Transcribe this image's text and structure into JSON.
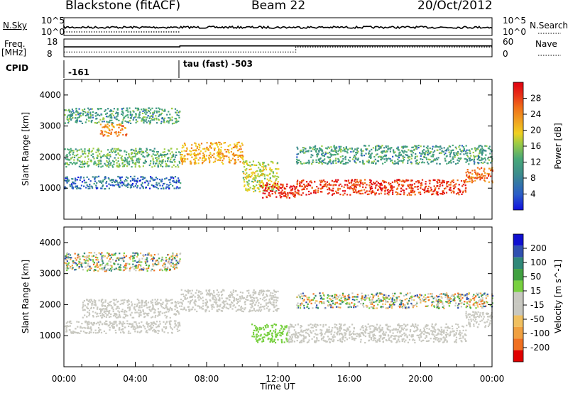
{
  "header": {
    "station": "Blackstone (fitACF)",
    "beam": "Beam 22",
    "date": "20/Oct/2012"
  },
  "strip": {
    "nsky_label": "N.Sky",
    "nsearch_label": "N.Search",
    "freq_label": "Freq.",
    "freq_unit": "[MHz]",
    "nave_label": "Nave",
    "cpid_label": "CPID",
    "nsky_ticks": [
      "10^5",
      "10^0"
    ],
    "nsearch_ticks": [
      "10^5",
      "10^0"
    ],
    "freq_ticks": [
      "18",
      "8"
    ],
    "nave_ticks": [
      "60",
      "0"
    ],
    "cpid_values": [
      {
        "label": "-161",
        "start_hour": 0
      },
      {
        "label": "tau (fast) -503",
        "start_hour": 6.5
      }
    ],
    "freq_steps": [
      {
        "start_hour": 0,
        "value": 10
      },
      {
        "start_hour": 6.5,
        "value": 11
      }
    ],
    "nave_steps": [
      {
        "start_hour": 0,
        "value": 16
      },
      {
        "start_hour": 13,
        "value": 33
      }
    ]
  },
  "chart_data": [
    {
      "type": "heatmap",
      "panel": "power",
      "ylabel": "Slant Range [km]",
      "yticks": [
        "1000",
        "2000",
        "3000",
        "4000"
      ],
      "ylim": [
        0,
        4500
      ],
      "xlim": [
        0,
        24
      ],
      "colorbar_label": "Power [dB]",
      "colorbar_ticks": [
        "4",
        "8",
        "12",
        "16",
        "20",
        "24",
        "28"
      ],
      "colorbar_range": [
        0,
        32
      ],
      "colorbar_colors": [
        "#1010e0",
        "#2a5cc8",
        "#3c8c8c",
        "#48a878",
        "#9ccc44",
        "#f0d020",
        "#f0a020",
        "#f07018",
        "#e83018",
        "#e00010"
      ],
      "echo_bands": [
        {
          "start_hour": 0.0,
          "end_hour": 6.5,
          "r0": 3100,
          "r1": 3600,
          "power": 10
        },
        {
          "start_hour": 2.0,
          "end_hour": 3.5,
          "r0": 2700,
          "r1": 3100,
          "power": 22
        },
        {
          "start_hour": 0.0,
          "end_hour": 6.5,
          "r0": 1700,
          "r1": 2300,
          "power": 12
        },
        {
          "start_hour": 0.0,
          "end_hour": 6.5,
          "r0": 1000,
          "r1": 1400,
          "power": 6
        },
        {
          "start_hour": 6.5,
          "end_hour": 10.0,
          "r0": 1800,
          "r1": 2500,
          "power": 20
        },
        {
          "start_hour": 10.0,
          "end_hour": 12.0,
          "r0": 900,
          "r1": 1900,
          "power": 16
        },
        {
          "start_hour": 11.0,
          "end_hour": 13.0,
          "r0": 700,
          "r1": 1200,
          "power": 28
        },
        {
          "start_hour": 13.0,
          "end_hour": 22.5,
          "r0": 800,
          "r1": 1300,
          "power": 27
        },
        {
          "start_hour": 22.5,
          "end_hour": 24.0,
          "r0": 1200,
          "r1": 1700,
          "power": 24
        },
        {
          "start_hour": 13.0,
          "end_hour": 24.0,
          "r0": 1800,
          "r1": 2400,
          "power": 10
        }
      ]
    },
    {
      "type": "heatmap",
      "panel": "velocity",
      "ylabel": "Slant Range [km]",
      "yticks": [
        "1000",
        "2000",
        "3000",
        "4000"
      ],
      "ylim": [
        0,
        4500
      ],
      "xlim": [
        0,
        24
      ],
      "xlabel": "Time UT",
      "xticks": [
        "00:00",
        "04:00",
        "08:00",
        "12:00",
        "16:00",
        "20:00",
        "00:00"
      ],
      "colorbar_label": "Velocity [m s^-1]",
      "colorbar_ticks": [
        "-200",
        "-100",
        "-50",
        "-15",
        "15",
        "50",
        "100",
        "200"
      ],
      "colorbar_colors": [
        "#e00000",
        "#f07020",
        "#f0a040",
        "#f0c060",
        "#c8c8c0",
        "#c8c8c0",
        "#78d040",
        "#40a040",
        "#308878",
        "#3050b0",
        "#1010d0"
      ],
      "echo_bands": [
        {
          "start_hour": 0.0,
          "end_hour": 6.5,
          "r0": 3100,
          "r1": 3700,
          "velocity": 0,
          "mixed": true
        },
        {
          "start_hour": 0.0,
          "end_hour": 6.5,
          "r0": 1100,
          "r1": 1500,
          "velocity": 0
        },
        {
          "start_hour": 1.0,
          "end_hour": 6.5,
          "r0": 1600,
          "r1": 2200,
          "velocity": 0
        },
        {
          "start_hour": 6.5,
          "end_hour": 12.0,
          "r0": 1800,
          "r1": 2500,
          "velocity": 0
        },
        {
          "start_hour": 10.5,
          "end_hour": 12.5,
          "r0": 800,
          "r1": 1400,
          "velocity": 40
        },
        {
          "start_hour": 12.5,
          "end_hour": 22.5,
          "r0": 800,
          "r1": 1400,
          "velocity": 0
        },
        {
          "start_hour": 22.5,
          "end_hour": 24.0,
          "r0": 1300,
          "r1": 1800,
          "velocity": 0
        },
        {
          "start_hour": 13.0,
          "end_hour": 24.0,
          "r0": 1900,
          "r1": 2400,
          "velocity": 0,
          "mixed": true
        }
      ]
    }
  ]
}
